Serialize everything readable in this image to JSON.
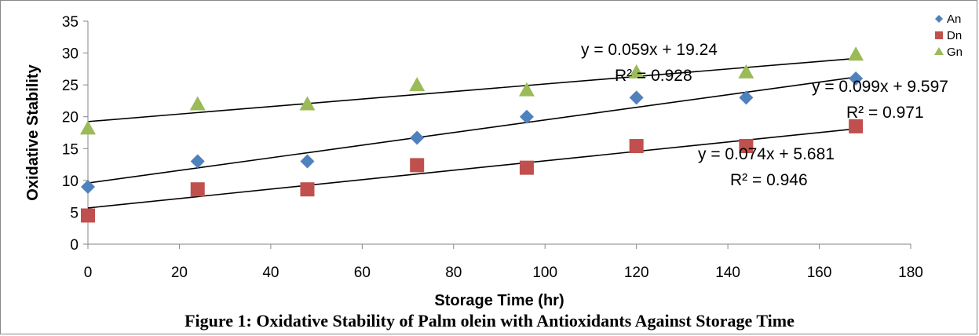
{
  "caption": "Figure 1: Oxidative Stability of Palm olein with Antioxidants Against Storage Time",
  "chart_data": {
    "type": "scatter",
    "title": "",
    "xlabel": "Storage Time (hr)",
    "ylabel": "Oxidative Stability",
    "xlim": [
      0,
      180
    ],
    "ylim": [
      0,
      35
    ],
    "xticks": [
      0,
      20,
      40,
      60,
      80,
      100,
      120,
      140,
      160,
      180
    ],
    "yticks": [
      0,
      5,
      10,
      15,
      20,
      25,
      30,
      35
    ],
    "grid": false,
    "legend_position": "top-right",
    "series": [
      {
        "name": "An",
        "marker": "diamond",
        "color": "#4f81bd",
        "x": [
          0,
          24,
          48,
          72,
          96,
          120,
          144,
          168
        ],
        "y": [
          9,
          13,
          13,
          16.7,
          20,
          23,
          23,
          26
        ],
        "trendline": {
          "slope": 0.099,
          "intercept": 9.597,
          "equation": "y = 0.099x + 9.597",
          "r2": "R² = 0.971"
        }
      },
      {
        "name": "Dn",
        "marker": "square",
        "color": "#c0504d",
        "x": [
          0,
          24,
          48,
          72,
          96,
          120,
          144,
          168
        ],
        "y": [
          4.5,
          8.6,
          8.6,
          12.4,
          12,
          15.4,
          15.4,
          18.5
        ],
        "trendline": {
          "slope": 0.074,
          "intercept": 5.681,
          "equation": "y = 0.074x + 5.681",
          "r2": "R² = 0.946"
        }
      },
      {
        "name": "Gn",
        "marker": "triangle",
        "color": "#9bbb59",
        "x": [
          0,
          24,
          48,
          72,
          96,
          120,
          144,
          168
        ],
        "y": [
          18.2,
          22,
          22,
          25,
          24.2,
          27,
          27,
          29.8
        ],
        "trendline": {
          "slope": 0.059,
          "intercept": 19.24,
          "equation": "y = 0.059x + 19.24",
          "r2": "R² = 0.928"
        }
      }
    ]
  }
}
